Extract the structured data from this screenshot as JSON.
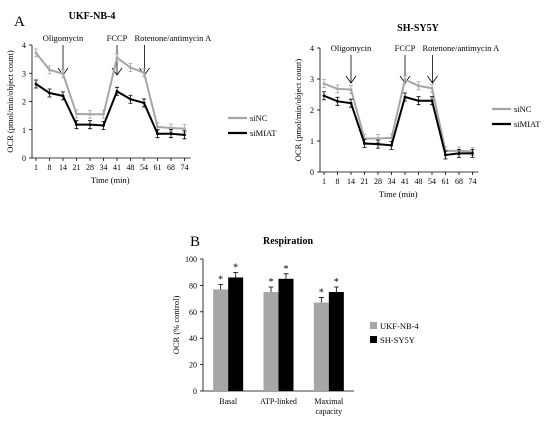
{
  "panels": {
    "A": "A",
    "B": "B"
  },
  "colors": {
    "siNC": "#a6a6a6",
    "siMIAT": "#000000",
    "UKF-NB-4": "#a6a6a6",
    "SH-SY5Y": "#000000"
  },
  "chart_data": [
    {
      "type": "line",
      "title": "UKF-NB-4",
      "xlabel": "Time (min)",
      "ylabel": "OCR (pmol/min/object count)",
      "x_ticks": [
        "1",
        "8",
        "14",
        "21",
        "28",
        "34",
        "41",
        "48",
        "54",
        "61",
        "68",
        "74"
      ],
      "x": [
        1,
        8,
        14,
        21,
        28,
        34,
        41,
        48,
        54,
        61,
        68,
        74
      ],
      "ylim": [
        0,
        4
      ],
      "y_ticks": [
        "0",
        "1",
        "2",
        "3",
        "4"
      ],
      "legend": "right",
      "annotations": [
        "Oligomycin",
        "FCCP",
        "Rotenone/antimycin A"
      ],
      "series": [
        {
          "name": "siNC",
          "values": [
            3.72,
            3.12,
            2.98,
            1.56,
            1.55,
            1.55,
            3.55,
            3.2,
            3.02,
            1.1,
            1.06,
            1.04
          ]
        },
        {
          "name": "siMIAT",
          "values": [
            2.62,
            2.3,
            2.2,
            1.18,
            1.18,
            1.15,
            2.36,
            2.08,
            1.95,
            0.86,
            0.86,
            0.82
          ]
        }
      ]
    },
    {
      "type": "line",
      "title": "SH-SY5Y",
      "xlabel": "Time (min)",
      "ylabel": "OCR (pmol/min/object count)",
      "x_ticks": [
        "1",
        "8",
        "14",
        "21",
        "28",
        "34",
        "41",
        "48",
        "54",
        "61",
        "68",
        "74"
      ],
      "x": [
        1,
        8,
        14,
        21,
        28,
        34,
        41,
        48,
        54,
        61,
        68,
        74
      ],
      "ylim": [
        0,
        4
      ],
      "y_ticks": [
        "0",
        "1",
        "2",
        "3",
        "4"
      ],
      "legend": "right",
      "annotations": [
        "Oligomycin",
        "FCCP",
        "Rotenone/antimycin A"
      ],
      "series": [
        {
          "name": "siNC",
          "values": [
            2.85,
            2.68,
            2.66,
            1.08,
            1.08,
            1.1,
            2.98,
            2.78,
            2.7,
            0.68,
            0.68,
            0.66
          ]
        },
        {
          "name": "siMIAT",
          "values": [
            2.46,
            2.28,
            2.22,
            0.92,
            0.9,
            0.86,
            2.42,
            2.3,
            2.3,
            0.55,
            0.6,
            0.6
          ]
        }
      ]
    },
    {
      "type": "bar",
      "title": "Respiration",
      "xlabel": "",
      "ylabel": "OCR (% control)",
      "categories": [
        "Basal",
        "ATP-linked",
        "Maximal capacity"
      ],
      "ylim": [
        0,
        100
      ],
      "y_ticks": [
        "0",
        "20",
        "40",
        "60",
        "80",
        "100"
      ],
      "legend": "right",
      "significance": "*",
      "series": [
        {
          "name": "UKF-NB-4",
          "values": [
            77,
            75,
            67
          ]
        },
        {
          "name": "SH-SY5Y",
          "values": [
            86,
            85,
            75
          ]
        }
      ]
    }
  ]
}
